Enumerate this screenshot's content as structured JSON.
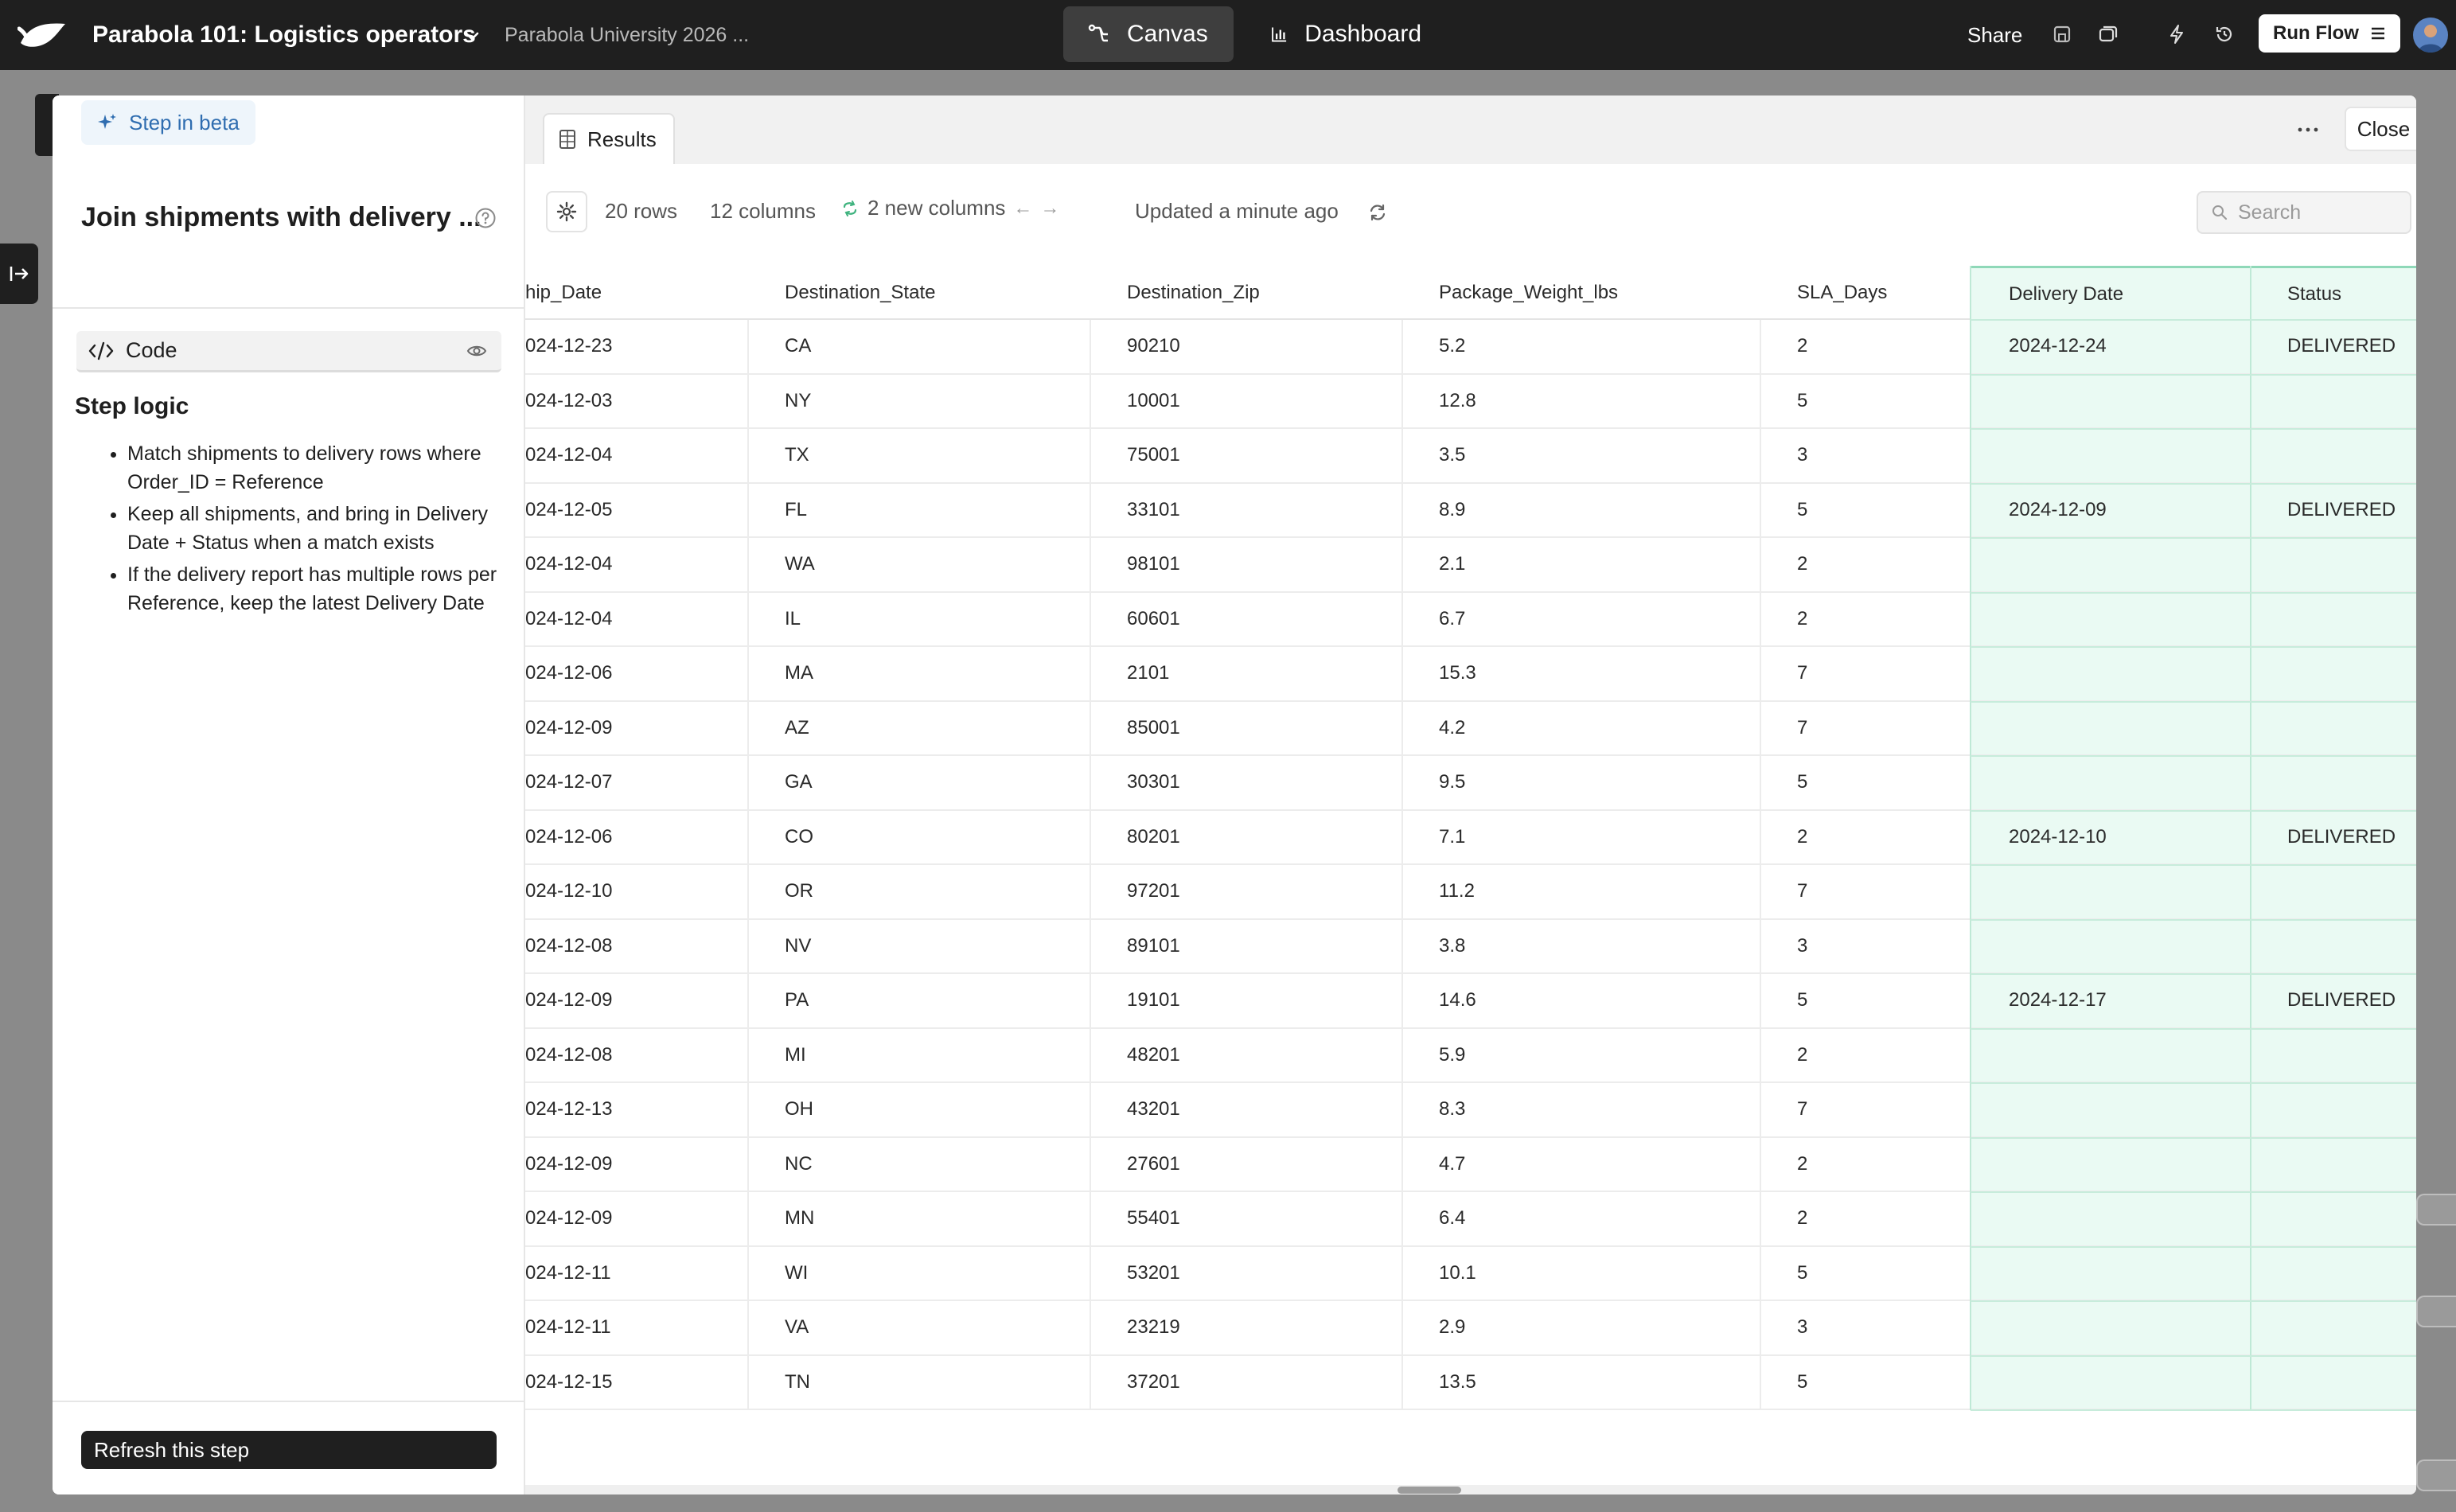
{
  "topbar": {
    "app_title": "Parabola 101: Logistics operators",
    "subtitle": "Parabola University 2026 ...",
    "tabs": [
      {
        "label": "Canvas",
        "icon": "canvas-icon",
        "active": true
      },
      {
        "label": "Dashboard",
        "icon": "chart-icon",
        "active": false
      }
    ],
    "share_label": "Share",
    "run_flow_label": "Run Flow"
  },
  "left_panel": {
    "beta_label": "Step in beta",
    "step_title": "Join shipments with delivery ...",
    "code_label": "Code",
    "logic_heading": "Step logic",
    "logic_items": [
      "Match shipments to delivery rows where Order_ID = Reference",
      "Keep all shipments, and bring in Delivery Date + Status when a match exists",
      "If the delivery report has multiple rows per Reference, keep the latest Delivery Date"
    ],
    "refresh_label": "Refresh this step"
  },
  "results": {
    "tab_label": "Results",
    "close_label": "Close",
    "rows_label": "20 rows",
    "columns_label": "12 columns",
    "new_columns_label": "2 new columns",
    "updated_label": "Updated a minute ago",
    "search_placeholder": "Search",
    "new_column_color": "#eafaf3",
    "columns": [
      "hip_Date",
      "Destination_State",
      "Destination_Zip",
      "Package_Weight_lbs",
      "SLA_Days",
      "Delivery Date",
      "Status"
    ],
    "rows": [
      [
        "024-12-23",
        "CA",
        "90210",
        "5.2",
        "2",
        "2024-12-24",
        "DELIVERED"
      ],
      [
        "024-12-03",
        "NY",
        "10001",
        "12.8",
        "5",
        "",
        ""
      ],
      [
        "024-12-04",
        "TX",
        "75001",
        "3.5",
        "3",
        "",
        ""
      ],
      [
        "024-12-05",
        "FL",
        "33101",
        "8.9",
        "5",
        "2024-12-09",
        "DELIVERED"
      ],
      [
        "024-12-04",
        "WA",
        "98101",
        "2.1",
        "2",
        "",
        ""
      ],
      [
        "024-12-04",
        "IL",
        "60601",
        "6.7",
        "2",
        "",
        ""
      ],
      [
        "024-12-06",
        "MA",
        "2101",
        "15.3",
        "7",
        "",
        ""
      ],
      [
        "024-12-09",
        "AZ",
        "85001",
        "4.2",
        "7",
        "",
        ""
      ],
      [
        "024-12-07",
        "GA",
        "30301",
        "9.5",
        "5",
        "",
        ""
      ],
      [
        "024-12-06",
        "CO",
        "80201",
        "7.1",
        "2",
        "2024-12-10",
        "DELIVERED"
      ],
      [
        "024-12-10",
        "OR",
        "97201",
        "11.2",
        "7",
        "",
        ""
      ],
      [
        "024-12-08",
        "NV",
        "89101",
        "3.8",
        "3",
        "",
        ""
      ],
      [
        "024-12-09",
        "PA",
        "19101",
        "14.6",
        "5",
        "2024-12-17",
        "DELIVERED"
      ],
      [
        "024-12-08",
        "MI",
        "48201",
        "5.9",
        "2",
        "",
        ""
      ],
      [
        "024-12-13",
        "OH",
        "43201",
        "8.3",
        "7",
        "",
        ""
      ],
      [
        "024-12-09",
        "NC",
        "27601",
        "4.7",
        "2",
        "",
        ""
      ],
      [
        "024-12-09",
        "MN",
        "55401",
        "6.4",
        "2",
        "",
        ""
      ],
      [
        "024-12-11",
        "WI",
        "53201",
        "10.1",
        "5",
        "",
        ""
      ],
      [
        "024-12-11",
        "VA",
        "23219",
        "2.9",
        "3",
        "",
        ""
      ],
      [
        "024-12-15",
        "TN",
        "37201",
        "13.5",
        "5",
        "",
        ""
      ]
    ]
  }
}
